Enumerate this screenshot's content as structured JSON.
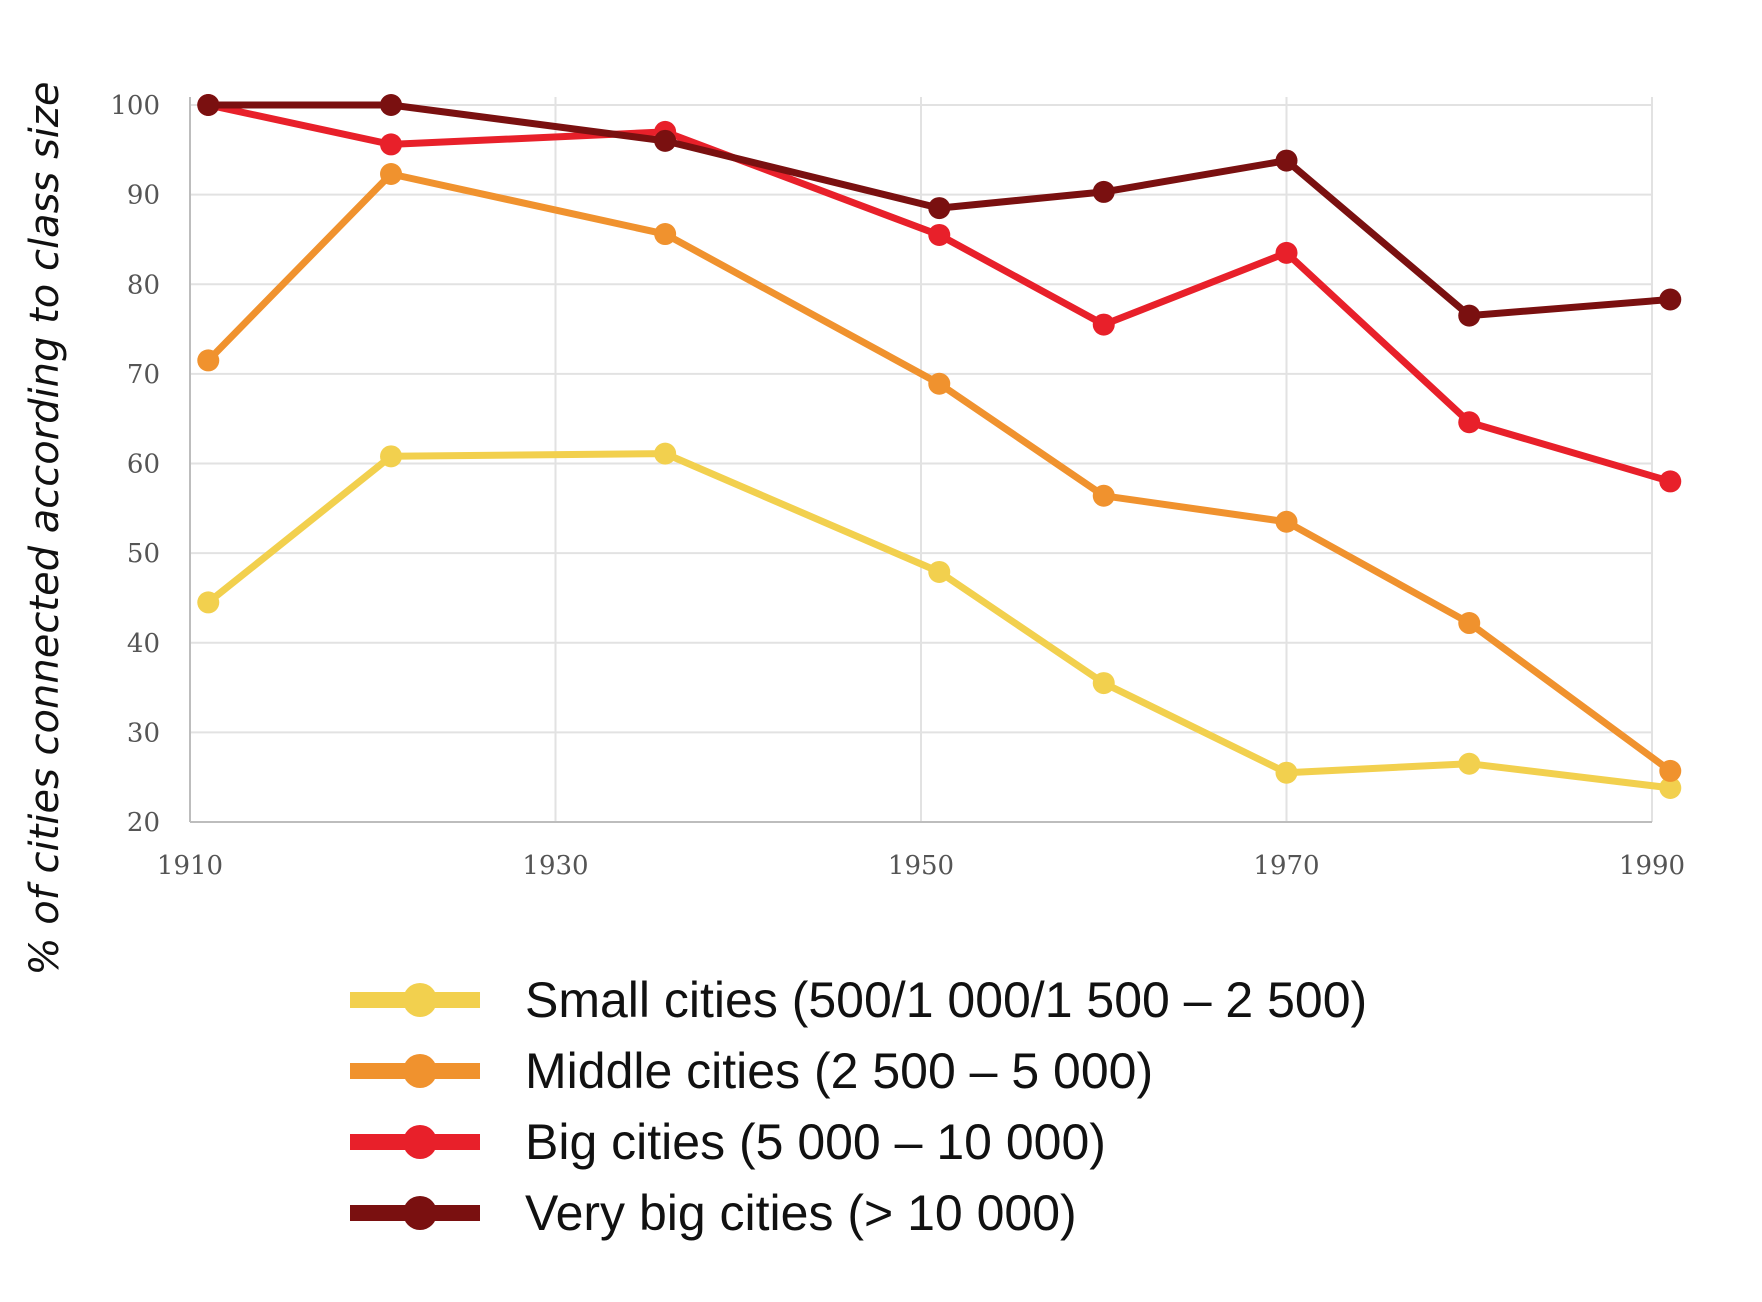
{
  "chart_data": {
    "type": "line",
    "title": "",
    "xlabel": "",
    "ylabel": "% of cities connected according to class size",
    "x": [
      1911,
      1921,
      1936,
      1951,
      1960,
      1970,
      1980,
      1991
    ],
    "x_ticks": [
      "1910",
      "1930",
      "1950",
      "1970",
      "1990"
    ],
    "y_ticks": [
      "100",
      "90",
      "80",
      "70",
      "60",
      "50",
      "40",
      "30",
      "20"
    ],
    "xlim": [
      1910,
      1990
    ],
    "ylim": [
      20,
      100
    ],
    "grid": true,
    "legend_position": "bottom",
    "series": [
      {
        "name": "Small cities (500/1 000/1 500 – 2 500)",
        "color": "#f2d04e",
        "values": [
          44.5,
          60.8,
          61.1,
          47.9,
          35.5,
          25.5,
          26.5,
          23.8
        ]
      },
      {
        "name": "Middle cities (2 500 – 5 000)",
        "color": "#f0922e",
        "values": [
          71.5,
          92.3,
          85.6,
          68.9,
          56.4,
          53.5,
          42.2,
          25.7
        ]
      },
      {
        "name": "Big cities (5 000 – 10 000)",
        "color": "#e8202a",
        "values": [
          100,
          95.6,
          97,
          85.5,
          75.5,
          83.5,
          64.6,
          58
        ]
      },
      {
        "name": "Very big cities (> 10 000)",
        "color": "#7a1010",
        "values": [
          100,
          100,
          96,
          88.5,
          90.3,
          93.8,
          76.5,
          78.3
        ]
      }
    ]
  }
}
